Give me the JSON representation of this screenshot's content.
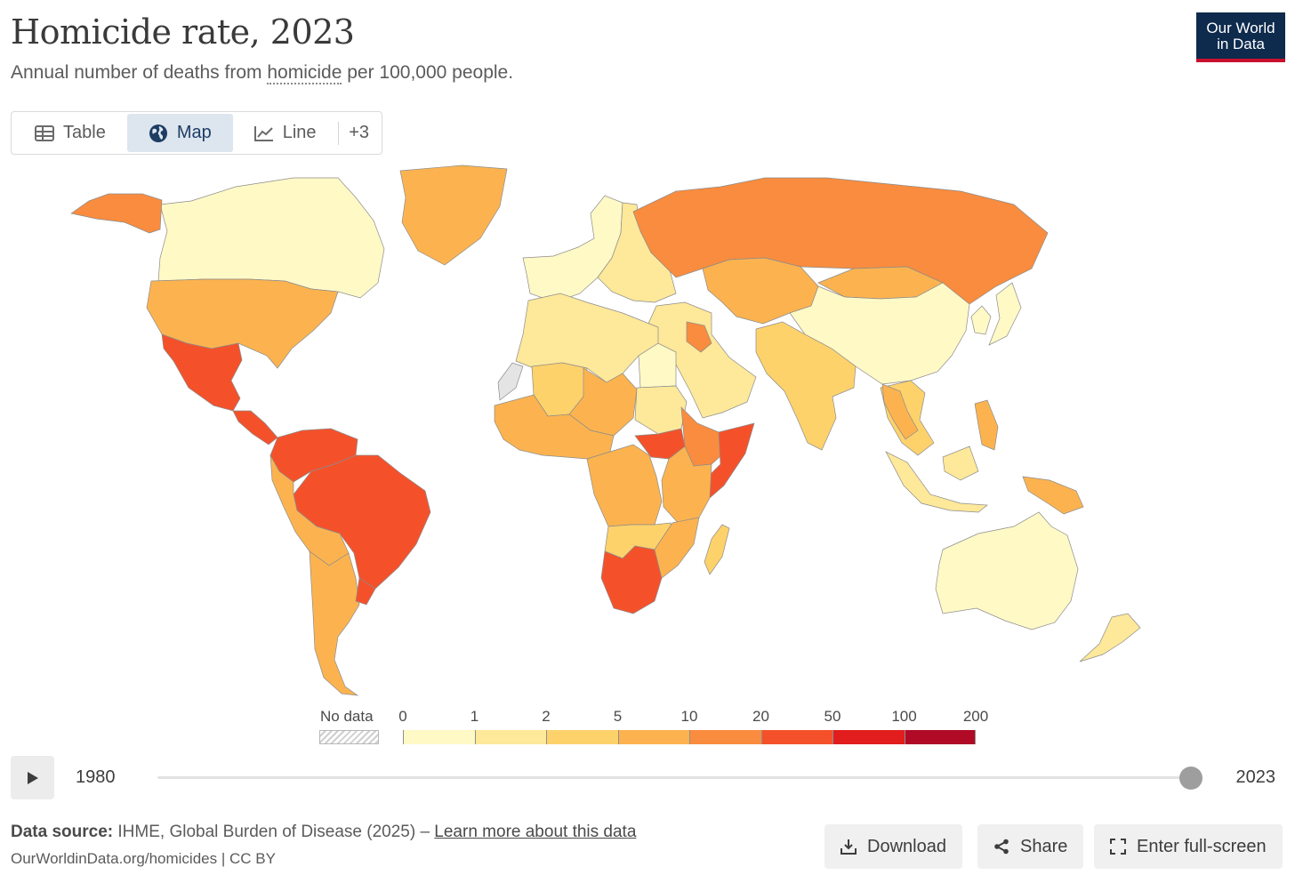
{
  "header": {
    "title": "Homicide rate, 2023",
    "subtitle_pre": "Annual number of deaths from ",
    "subtitle_term": "homicide",
    "subtitle_post": " per 100,000 people.",
    "logo_line1": "Our World",
    "logo_line2": "in Data"
  },
  "tabs": [
    {
      "label": "Table",
      "icon": "table-icon"
    },
    {
      "label": "Map",
      "icon": "globe-icon",
      "active": true
    },
    {
      "label": "Line",
      "icon": "line-chart-icon"
    }
  ],
  "tabs_more": "+3",
  "legend": {
    "no_data_label": "No data",
    "bins": [
      "0",
      "1",
      "2",
      "5",
      "10",
      "20",
      "50",
      "100",
      "200"
    ],
    "colors": [
      "#fff9c6",
      "#fee89a",
      "#fed26b",
      "#fcb34f",
      "#f98c3e",
      "#f4512b",
      "#e21d1d",
      "#b00a26"
    ]
  },
  "map_data": {
    "regions": [
      {
        "name": "Canada",
        "bin": 0
      },
      {
        "name": "United States",
        "bin": 3
      },
      {
        "name": "Mexico",
        "bin": 5
      },
      {
        "name": "Central America",
        "bin": 5
      },
      {
        "name": "Greenland",
        "bin": 3
      },
      {
        "name": "Alaska",
        "bin": 4
      },
      {
        "name": "Colombia & Venezuela",
        "bin": 5
      },
      {
        "name": "Brazil",
        "bin": 5
      },
      {
        "name": "Peru & Bolivia",
        "bin": 3
      },
      {
        "name": "Argentina & Chile",
        "bin": 3
      },
      {
        "name": "Uruguay",
        "bin": 5
      },
      {
        "name": "Western Europe",
        "bin": 0
      },
      {
        "name": "Eastern Europe",
        "bin": 1
      },
      {
        "name": "Russia",
        "bin": 4
      },
      {
        "name": "Kazakhstan & Central Asia",
        "bin": 3
      },
      {
        "name": "Mongolia",
        "bin": 3
      },
      {
        "name": "China",
        "bin": 0
      },
      {
        "name": "Japan & Koreas",
        "bin": 0
      },
      {
        "name": "Middle East",
        "bin": 1
      },
      {
        "name": "Iraq",
        "bin": 4
      },
      {
        "name": "India & South Asia",
        "bin": 2
      },
      {
        "name": "Southeast Asia",
        "bin": 2
      },
      {
        "name": "Myanmar & Thailand",
        "bin": 3
      },
      {
        "name": "Indonesia",
        "bin": 1
      },
      {
        "name": "Philippines",
        "bin": 3
      },
      {
        "name": "Papua New Guinea",
        "bin": 3
      },
      {
        "name": "Australia",
        "bin": 0
      },
      {
        "name": "New Zealand",
        "bin": 1
      },
      {
        "name": "North Africa",
        "bin": 1
      },
      {
        "name": "Mali",
        "bin": 2
      },
      {
        "name": "Sahel",
        "bin": 3
      },
      {
        "name": "Egypt",
        "bin": 0
      },
      {
        "name": "Sudan",
        "bin": 1
      },
      {
        "name": "West Africa",
        "bin": 3
      },
      {
        "name": "Central Africa",
        "bin": 3
      },
      {
        "name": "South Sudan",
        "bin": 5
      },
      {
        "name": "Horn of Africa",
        "bin": 4
      },
      {
        "name": "Somalia",
        "bin": 5
      },
      {
        "name": "East Africa",
        "bin": 3
      },
      {
        "name": "Angola & Zambia",
        "bin": 2
      },
      {
        "name": "Namibia & South Africa",
        "bin": 5
      },
      {
        "name": "Mozambique",
        "bin": 3
      },
      {
        "name": "Madagascar",
        "bin": 2
      },
      {
        "name": "Western Sahara",
        "bin": -1
      }
    ]
  },
  "timeline": {
    "start_year": "1980",
    "end_year": "2023",
    "position": 1
  },
  "footer": {
    "source_label": "Data source:",
    "source_text": " IHME, Global Burden of Disease (2025) – ",
    "source_link": "Learn more about this data",
    "url_text": "OurWorldinData.org/homicides | CC BY",
    "download_label": "Download",
    "share_label": "Share",
    "fullscreen_label": "Enter full-screen"
  }
}
